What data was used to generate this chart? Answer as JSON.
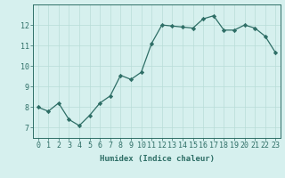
{
  "xlabel": "Humidex (Indice chaleur)",
  "x": [
    0,
    1,
    2,
    3,
    4,
    5,
    6,
    7,
    8,
    9,
    10,
    11,
    12,
    13,
    14,
    15,
    16,
    17,
    18,
    19,
    20,
    21,
    22,
    23
  ],
  "y": [
    8.0,
    7.8,
    8.2,
    7.4,
    7.1,
    7.6,
    8.2,
    8.55,
    9.55,
    9.35,
    9.7,
    11.1,
    12.0,
    11.95,
    11.9,
    11.85,
    12.3,
    12.45,
    11.75,
    11.75,
    12.0,
    11.85,
    11.45,
    10.65
  ],
  "line_color": "#2e6e66",
  "marker": "D",
  "marker_size": 2.2,
  "bg_color": "#d6f0ee",
  "grid_color": "#b8ddd8",
  "tick_color": "#2e6e66",
  "label_color": "#2e6e66",
  "ylim": [
    6.5,
    13.0
  ],
  "yticks": [
    7,
    8,
    9,
    10,
    11,
    12
  ],
  "xticks": [
    0,
    1,
    2,
    3,
    4,
    5,
    6,
    7,
    8,
    9,
    10,
    11,
    12,
    13,
    14,
    15,
    16,
    17,
    18,
    19,
    20,
    21,
    22,
    23
  ],
  "xlabel_fontsize": 6.5,
  "tick_fontsize": 6.0,
  "linewidth": 0.9
}
